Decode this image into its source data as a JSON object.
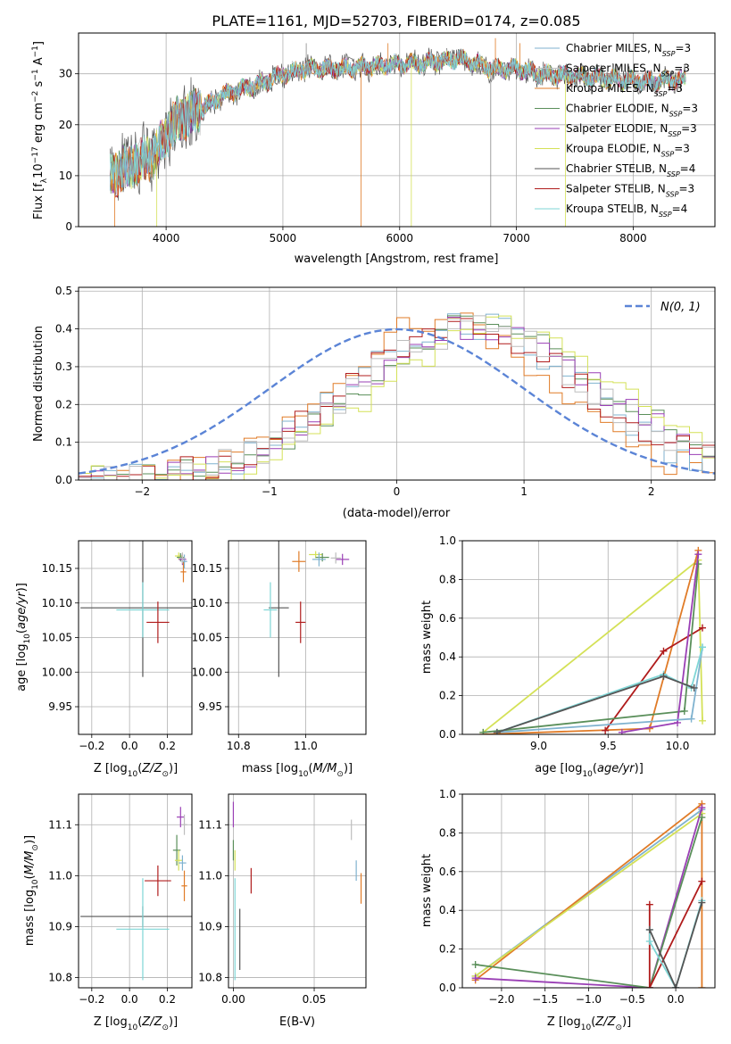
{
  "figure_title": "PLATE=1161, MJD=52703, FIBERID=0174, z=0.085",
  "colors": {
    "Chabrier MILES": "#7fb2cf",
    "Salpeter MILES": "#bdbdbd",
    "Kroupa MILES": "#e07b27",
    "Chabrier ELODIE": "#5a8f5a",
    "Salpeter ELODIE": "#9a3fb5",
    "Kroupa ELODIE": "#d4e157",
    "Chabrier STELIB": "#555555",
    "Salpeter STELIB": "#b01c1c",
    "Kroupa STELIB": "#7fd6d6",
    "normal_curve": "#5b84d6",
    "grid": "#b0b0b0"
  },
  "chart_data": [
    {
      "id": "spectrum",
      "type": "line",
      "xlabel": "wavelength [Angstrom, rest frame]",
      "ylabel_parts": [
        "Flux [f",
        "λ",
        "10",
        "−17",
        " erg cm",
        "−2",
        " s",
        "−1",
        " A",
        "−1",
        "]"
      ],
      "xlim": [
        3250,
        8700
      ],
      "ylim": [
        0,
        38
      ],
      "xticks": [
        4000,
        5000,
        6000,
        7000,
        8000
      ],
      "yticks": [
        0,
        10,
        20,
        30
      ],
      "grid": true,
      "legend_position": "right",
      "series": [
        {
          "name": "Chabrier MILES",
          "label": "Chabrier MILES, N",
          "sub": "SSP",
          "n": "=3"
        },
        {
          "name": "Salpeter MILES",
          "label": "Salpeter MILES, N",
          "sub": "SSP",
          "n": "=3"
        },
        {
          "name": "Kroupa MILES",
          "label": "Kroupa MILES, N",
          "sub": "SSP",
          "n": "=3"
        },
        {
          "name": "Chabrier ELODIE",
          "label": "Chabrier ELODIE, N",
          "sub": "SSP",
          "n": "=3"
        },
        {
          "name": "Salpeter ELODIE",
          "label": "Salpeter ELODIE, N",
          "sub": "SSP",
          "n": "=3"
        },
        {
          "name": "Kroupa ELODIE",
          "label": "Kroupa ELODIE, N",
          "sub": "SSP",
          "n": "=3"
        },
        {
          "name": "Chabrier STELIB",
          "label": "Chabrier STELIB, N",
          "sub": "SSP",
          "n": "=4"
        },
        {
          "name": "Salpeter STELIB",
          "label": "Salpeter STELIB, N",
          "sub": "SSP",
          "n": "=3"
        },
        {
          "name": "Kroupa STELIB",
          "label": "Kroupa STELIB, N",
          "sub": "SSP",
          "n": "=4"
        }
      ],
      "continuum": [
        [
          3500,
          10
        ],
        [
          3700,
          12
        ],
        [
          3900,
          14
        ],
        [
          4000,
          18
        ],
        [
          4100,
          21
        ],
        [
          4300,
          23
        ],
        [
          4500,
          26
        ],
        [
          4800,
          28
        ],
        [
          5000,
          30
        ],
        [
          5200,
          31
        ],
        [
          5500,
          31
        ],
        [
          5800,
          31.5
        ],
        [
          6000,
          32
        ],
        [
          6200,
          32
        ],
        [
          6500,
          33
        ],
        [
          6800,
          31
        ],
        [
          7000,
          31
        ],
        [
          7200,
          30
        ],
        [
          7500,
          29.5
        ],
        [
          7800,
          29
        ],
        [
          8200,
          28.5
        ],
        [
          8500,
          29
        ]
      ],
      "spikes": [
        [
          3560,
          -1
        ],
        [
          3920,
          -1
        ],
        [
          5200,
          36
        ],
        [
          5670,
          -1
        ],
        [
          5900,
          36
        ],
        [
          6100,
          -1
        ],
        [
          6780,
          -1
        ],
        [
          6820,
          37
        ],
        [
          7030,
          36
        ],
        [
          7420,
          -1
        ]
      ]
    },
    {
      "id": "residuals",
      "type": "histogram",
      "xlabel": "(data-model)/error",
      "ylabel": "Normed distribution",
      "xlim": [
        -2.5,
        2.5
      ],
      "ylim": [
        0,
        0.51
      ],
      "xticks": [
        -2,
        -1,
        0,
        1,
        2
      ],
      "yticks": [
        0.0,
        0.1,
        0.2,
        0.3,
        0.4,
        0.5
      ],
      "grid": true,
      "legend": {
        "label": "N(0, 1)",
        "position": "top-right"
      },
      "bin_width": 0.1,
      "profiles": [
        {
          "series": "Kroupa MILES",
          "mu": 0.35,
          "sigma": 0.85,
          "peak": 0.43
        },
        {
          "series": "Chabrier MILES",
          "mu": 0.55,
          "sigma": 0.9,
          "peak": 0.41
        },
        {
          "series": "Chabrier ELODIE",
          "mu": 0.7,
          "sigma": 0.95,
          "peak": 0.41
        },
        {
          "series": "Salpeter ELODIE",
          "mu": 0.65,
          "sigma": 0.95,
          "peak": 0.41
        },
        {
          "series": "Kroupa ELODIE",
          "mu": 0.85,
          "sigma": 0.95,
          "peak": 0.4
        },
        {
          "series": "Salpeter STELIB",
          "mu": 0.55,
          "sigma": 0.95,
          "peak": 0.39
        },
        {
          "series": "Salpeter MILES",
          "mu": 0.6,
          "sigma": 0.92,
          "peak": 0.4
        }
      ]
    },
    {
      "id": "age_vs_Z",
      "type": "scatter",
      "xlabel": "Z [log10(Z/Z⊙)]",
      "ylabel": "age [log10(age/yr)]",
      "xlim": [
        -0.27,
        0.33
      ],
      "ylim": [
        9.91,
        10.19
      ],
      "xticks": [
        -0.2,
        0.0,
        0.2
      ],
      "yticks": [
        9.95,
        10.0,
        10.05,
        10.1,
        10.15
      ],
      "grid": true,
      "points": [
        {
          "s": "Chabrier STELIB",
          "x": 0.07,
          "y": 10.093,
          "xerr": 0.33,
          "yerr": 0.1
        },
        {
          "s": "Kroupa STELIB",
          "x": 0.07,
          "y": 10.09,
          "xerr": 0.14,
          "yerr": 0.04
        },
        {
          "s": "Salpeter STELIB",
          "x": 0.15,
          "y": 10.072,
          "xerr": 0.06,
          "yerr": 0.03
        },
        {
          "s": "Kroupa ELODIE",
          "x": 0.26,
          "y": 10.168,
          "xerr": 0.02,
          "yerr": 0.005
        },
        {
          "s": "Chabrier ELODIE",
          "x": 0.27,
          "y": 10.166,
          "xerr": 0.02,
          "yerr": 0.006
        },
        {
          "s": "Salpeter ELODIE",
          "x": 0.28,
          "y": 10.163,
          "xerr": 0.02,
          "yerr": 0.008
        },
        {
          "s": "Kroupa MILES",
          "x": 0.285,
          "y": 10.145,
          "xerr": 0.015,
          "yerr": 0.015
        },
        {
          "s": "Chabrier MILES",
          "x": 0.29,
          "y": 10.16,
          "xerr": 0.015,
          "yerr": 0.01
        },
        {
          "s": "Salpeter MILES",
          "x": 0.28,
          "y": 10.165,
          "xerr": 0.015,
          "yerr": 0.008
        }
      ]
    },
    {
      "id": "age_vs_mass",
      "type": "scatter",
      "xlabel": "mass [log10(M/M⊙)]",
      "ylabel": "",
      "xlim": [
        10.77,
        11.18
      ],
      "ylim": [
        9.91,
        10.19
      ],
      "xticks": [
        10.8,
        11.0
      ],
      "yticks": [
        9.95,
        10.0,
        10.05,
        10.1,
        10.15
      ],
      "grid": true,
      "points": [
        {
          "s": "Chabrier STELIB",
          "x": 10.92,
          "y": 10.093,
          "xerr": 0.03,
          "yerr": 0.1
        },
        {
          "s": "Kroupa STELIB",
          "x": 10.895,
          "y": 10.09,
          "xerr": 0.02,
          "yerr": 0.04
        },
        {
          "s": "Salpeter STELIB",
          "x": 10.985,
          "y": 10.072,
          "xerr": 0.015,
          "yerr": 0.03
        },
        {
          "s": "Kroupa MILES",
          "x": 10.98,
          "y": 10.16,
          "xerr": 0.02,
          "yerr": 0.015
        },
        {
          "s": "Kroupa ELODIE",
          "x": 11.03,
          "y": 10.17,
          "xerr": 0.02,
          "yerr": 0.005
        },
        {
          "s": "Chabrier ELODIE",
          "x": 11.05,
          "y": 10.166,
          "xerr": 0.02,
          "yerr": 0.006
        },
        {
          "s": "Chabrier MILES",
          "x": 11.04,
          "y": 10.163,
          "xerr": 0.02,
          "yerr": 0.01
        },
        {
          "s": "Salpeter ELODIE",
          "x": 11.11,
          "y": 10.163,
          "xerr": 0.02,
          "yerr": 0.008
        },
        {
          "s": "Salpeter MILES",
          "x": 11.09,
          "y": 10.165,
          "xerr": 0.015,
          "yerr": 0.008
        }
      ]
    },
    {
      "id": "weight_vs_age",
      "type": "line",
      "xlabel": "age [log10(age/yr)]",
      "ylabel": "mass weight",
      "xlim": [
        8.45,
        10.27
      ],
      "ylim": [
        0,
        1.0
      ],
      "xticks": [
        9.0,
        9.5,
        10.0
      ],
      "yticks": [
        0.0,
        0.2,
        0.4,
        0.6,
        0.8,
        1.0
      ],
      "grid": true,
      "series": [
        {
          "s": "Kroupa ELODIE",
          "pts": [
            [
              8.6,
              0.01
            ],
            [
              10.15,
              0.9
            ],
            [
              10.18,
              0.07
            ]
          ]
        },
        {
          "s": "Kroupa MILES",
          "pts": [
            [
              8.6,
              0.0
            ],
            [
              9.8,
              0.03
            ],
            [
              10.15,
              0.95
            ]
          ]
        },
        {
          "s": "Salpeter STELIB",
          "pts": [
            [
              9.48,
              0.02
            ],
            [
              9.9,
              0.43
            ],
            [
              10.18,
              0.55
            ]
          ]
        },
        {
          "s": "Chabrier ELODIE",
          "pts": [
            [
              8.6,
              0.01
            ],
            [
              10.05,
              0.12
            ],
            [
              10.15,
              0.88
            ]
          ]
        },
        {
          "s": "Salpeter ELODIE",
          "pts": [
            [
              9.6,
              0.01
            ],
            [
              10.0,
              0.06
            ],
            [
              10.15,
              0.93
            ]
          ]
        },
        {
          "s": "Chabrier MILES",
          "pts": [
            [
              8.7,
              0.01
            ],
            [
              10.1,
              0.08
            ],
            [
              10.18,
              0.45
            ]
          ]
        },
        {
          "s": "Kroupa STELIB",
          "pts": [
            [
              8.7,
              0.01
            ],
            [
              9.9,
              0.31
            ],
            [
              10.1,
              0.24
            ],
            [
              10.18,
              0.45
            ]
          ]
        },
        {
          "s": "Chabrier STELIB",
          "pts": [
            [
              8.7,
              0.01
            ],
            [
              9.9,
              0.3
            ],
            [
              10.12,
              0.24
            ]
          ]
        }
      ]
    },
    {
      "id": "mass_vs_Z",
      "type": "scatter",
      "xlabel": "Z [log10(Z/Z⊙)]",
      "ylabel": "mass [log10(M/M⊙)]",
      "xlim": [
        -0.27,
        0.33
      ],
      "ylim": [
        10.78,
        11.16
      ],
      "xticks": [
        -0.2,
        0.0,
        0.2
      ],
      "yticks": [
        10.8,
        10.9,
        11.0,
        11.1
      ],
      "grid": true,
      "points": [
        {
          "s": "Chabrier STELIB",
          "x": 0.07,
          "y": 10.92,
          "xerr": 0.33,
          "yerr": 0.02
        },
        {
          "s": "Kroupa STELIB",
          "x": 0.07,
          "y": 10.895,
          "xerr": 0.14,
          "yerr": 0.1
        },
        {
          "s": "Salpeter STELIB",
          "x": 0.15,
          "y": 10.99,
          "xerr": 0.07,
          "yerr": 0.03
        },
        {
          "s": "Chabrier ELODIE",
          "x": 0.25,
          "y": 11.05,
          "xerr": 0.02,
          "yerr": 0.03
        },
        {
          "s": "Kroupa ELODIE",
          "x": 0.26,
          "y": 11.03,
          "xerr": 0.02,
          "yerr": 0.02
        },
        {
          "s": "Salpeter ELODIE",
          "x": 0.27,
          "y": 11.115,
          "xerr": 0.02,
          "yerr": 0.02
        },
        {
          "s": "Chabrier MILES",
          "x": 0.28,
          "y": 11.025,
          "xerr": 0.02,
          "yerr": 0.015
        },
        {
          "s": "Kroupa MILES",
          "x": 0.29,
          "y": 10.98,
          "xerr": 0.015,
          "yerr": 0.03
        },
        {
          "s": "Salpeter MILES",
          "x": 0.29,
          "y": 11.1,
          "xerr": 0.015,
          "yerr": 0.02
        }
      ]
    },
    {
      "id": "mass_vs_EBV",
      "type": "scatter",
      "xlabel": "E(B-V)",
      "ylabel": "",
      "xlim": [
        -0.003,
        0.082
      ],
      "ylim": [
        10.78,
        11.16
      ],
      "xticks": [
        0.0,
        0.05
      ],
      "yticks": [
        10.8,
        10.9,
        11.0,
        11.1
      ],
      "grid": true,
      "points": [
        {
          "s": "Salpeter ELODIE",
          "x": 0.0,
          "y": 11.12,
          "xerr": 0.0,
          "yerr": 0.025
        },
        {
          "s": "Chabrier ELODIE",
          "x": 0.0,
          "y": 11.05,
          "xerr": 0.0,
          "yerr": 0.02
        },
        {
          "s": "Kroupa ELODIE",
          "x": 0.001,
          "y": 11.03,
          "xerr": 0.0,
          "yerr": 0.02
        },
        {
          "s": "Kroupa STELIB",
          "x": 0.001,
          "y": 10.895,
          "xerr": 0.0,
          "yerr": 0.1
        },
        {
          "s": "Chabrier STELIB",
          "x": 0.004,
          "y": 10.875,
          "xerr": 0.0,
          "yerr": 0.06
        },
        {
          "s": "Salpeter STELIB",
          "x": 0.011,
          "y": 10.99,
          "xerr": 0.0,
          "yerr": 0.025
        },
        {
          "s": "Salpeter MILES",
          "x": 0.073,
          "y": 11.09,
          "xerr": 0.0,
          "yerr": 0.02
        },
        {
          "s": "Chabrier MILES",
          "x": 0.076,
          "y": 11.01,
          "xerr": 0.0,
          "yerr": 0.02
        },
        {
          "s": "Kroupa MILES",
          "x": 0.079,
          "y": 10.975,
          "xerr": 0.0,
          "yerr": 0.03
        }
      ]
    },
    {
      "id": "weight_vs_Z",
      "type": "line",
      "xlabel": "Z [log10(Z/Z⊙)]",
      "ylabel": "mass weight",
      "xlim": [
        -2.45,
        0.45
      ],
      "ylim": [
        0,
        1.0
      ],
      "xticks": [
        -2.0,
        -1.5,
        -1.0,
        -0.5,
        0.0
      ],
      "yticks": [
        0.0,
        0.2,
        0.4,
        0.6,
        0.8,
        1.0
      ],
      "grid": true,
      "series": [
        {
          "s": "Chabrier MILES",
          "pts": [
            [
              -2.3,
              0.06
            ],
            [
              0.3,
              0.92
            ]
          ]
        },
        {
          "s": "Kroupa MILES",
          "pts": [
            [
              -2.3,
              0.04
            ],
            [
              0.3,
              0.95
            ],
            [
              0.3,
              0.0
            ]
          ]
        },
        {
          "s": "Kroupa ELODIE",
          "pts": [
            [
              -2.3,
              0.06
            ],
            [
              0.3,
              0.9
            ]
          ]
        },
        {
          "s": "Salpeter ELODIE",
          "pts": [
            [
              -2.3,
              0.05
            ],
            [
              -0.3,
              0.0
            ],
            [
              0.3,
              0.93
            ]
          ]
        },
        {
          "s": "Chabrier ELODIE",
          "pts": [
            [
              -2.3,
              0.12
            ],
            [
              -0.3,
              0.0
            ],
            [
              0.3,
              0.88
            ]
          ]
        },
        {
          "s": "Salpeter STELIB",
          "pts": [
            [
              -0.3,
              0.43
            ],
            [
              -0.3,
              0.0
            ],
            [
              0.3,
              0.55
            ]
          ]
        },
        {
          "s": "Kroupa STELIB",
          "pts": [
            [
              -0.3,
              0.3
            ],
            [
              -0.3,
              0.24
            ],
            [
              0.0,
              0.0
            ],
            [
              0.3,
              0.45
            ]
          ]
        },
        {
          "s": "Chabrier STELIB",
          "pts": [
            [
              -0.3,
              0.3
            ],
            [
              0.0,
              0.0
            ],
            [
              0.3,
              0.44
            ]
          ]
        }
      ]
    }
  ]
}
